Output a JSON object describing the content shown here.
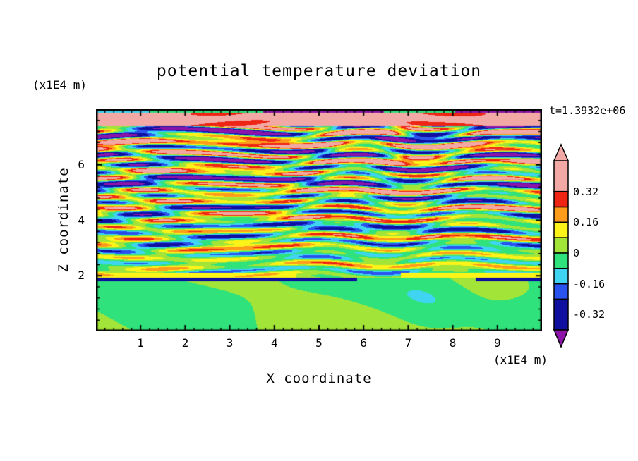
{
  "page": {
    "background_color": "#ffffff",
    "text_color": "#000000"
  },
  "chart_data": {
    "type": "heatmap",
    "title": "potential temperature deviation",
    "xlabel": "X coordinate",
    "ylabel": "Z coordinate",
    "x_unit_label": "(x1E4 m)",
    "z_unit_label": "(x1E4 m)",
    "time_annotation": "t=1.3932e+06",
    "xlim": [
      0,
      10
    ],
    "zlim": [
      0,
      8
    ],
    "x_major_ticks": [
      1,
      2,
      3,
      4,
      5,
      6,
      7,
      8,
      9
    ],
    "x_minor_step": 0.2,
    "z_major_ticks": [
      2,
      4,
      6
    ],
    "z_minor_step": 0.4,
    "grid": false,
    "legend_position": "right-colorbar",
    "colorbar": {
      "stops": [
        -0.4,
        -0.24,
        -0.16,
        -0.08,
        0,
        0.08,
        0.16,
        0.24,
        0.32,
        0.48
      ],
      "band_colors": [
        "#0f10a0",
        "#2a52ee",
        "#3fd4f2",
        "#30e27c",
        "#a2e438",
        "#fcf319",
        "#ff9c1c",
        "#ee2414",
        "#f2a8a4"
      ],
      "under_color": "#8c14a8",
      "over_color": "#f2a8a4",
      "contour_interval": 0.08,
      "tick_values": [
        0.32,
        0.16,
        0,
        -0.16,
        -0.32
      ],
      "tick_labels": [
        "0.32",
        "0.16",
        "0",
        "-0.16",
        "-0.32"
      ]
    },
    "field_summary": "Vertical cross-section (x-z) of potential temperature deviation from a stratified turbulence / gravity-wave breaking simulation at t=1.3932e+06. Fine horizontally-elongated layers of alternating positive (yellow/orange/red/salmon) and negative (cyan/blue/navy) deviation fill z=2 to z=7.5; amplitude grows with height up to about +/-0.4. Below z=2 the field is nearly uniform, weak (-0.08 to +0.08) smooth green blobs. A strong positive salmon band (~+0.4) spans the top of the domain with deep negative purple patches (< -0.4) at the upper boundary near x=4-6.5 and x=8-10.",
    "regions": [
      {
        "z_range": [
          0,
          2
        ],
        "value_range": [
          -0.1,
          0.08
        ],
        "description": "quiescent lower layer: spring-green background with yellow-green blobs, thin navy streak near z=2"
      },
      {
        "z_range": [
          2,
          7.4
        ],
        "value_range": [
          -0.4,
          0.4
        ],
        "description": "fine braided horizontal striations alternating sign, amplitude increasing with height"
      },
      {
        "z_range": [
          7.4,
          8
        ],
        "value_range": [
          -0.48,
          0.48
        ],
        "description": "salmon positive band capped by purple negative patches at the top boundary"
      }
    ]
  }
}
